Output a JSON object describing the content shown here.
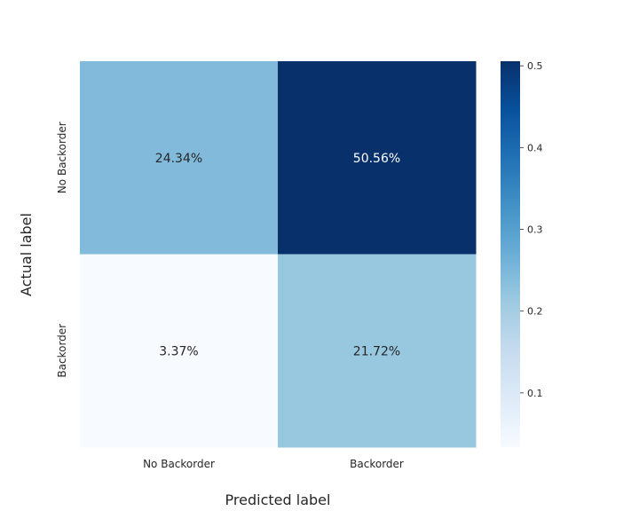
{
  "chart_data": {
    "type": "heatmap",
    "title": "",
    "xlabel": "Predicted label",
    "ylabel": "Actual label",
    "x_categories": [
      "No Backorder",
      "Backorder"
    ],
    "y_categories": [
      "No Backorder",
      "Backorder"
    ],
    "values": [
      [
        0.2434,
        0.5056
      ],
      [
        0.0337,
        0.2172
      ]
    ],
    "labels": [
      [
        "24.34%",
        "50.56%"
      ],
      [
        "3.37%",
        "21.72%"
      ]
    ],
    "colormap": "Blues",
    "colorbar": {
      "vmin": 0.0337,
      "vmax": 0.5056,
      "ticks": [
        0.1,
        0.2,
        0.3,
        0.4,
        0.5
      ],
      "tick_labels": [
        "0.1",
        "0.2",
        "0.3",
        "0.4",
        "0.5"
      ]
    }
  }
}
